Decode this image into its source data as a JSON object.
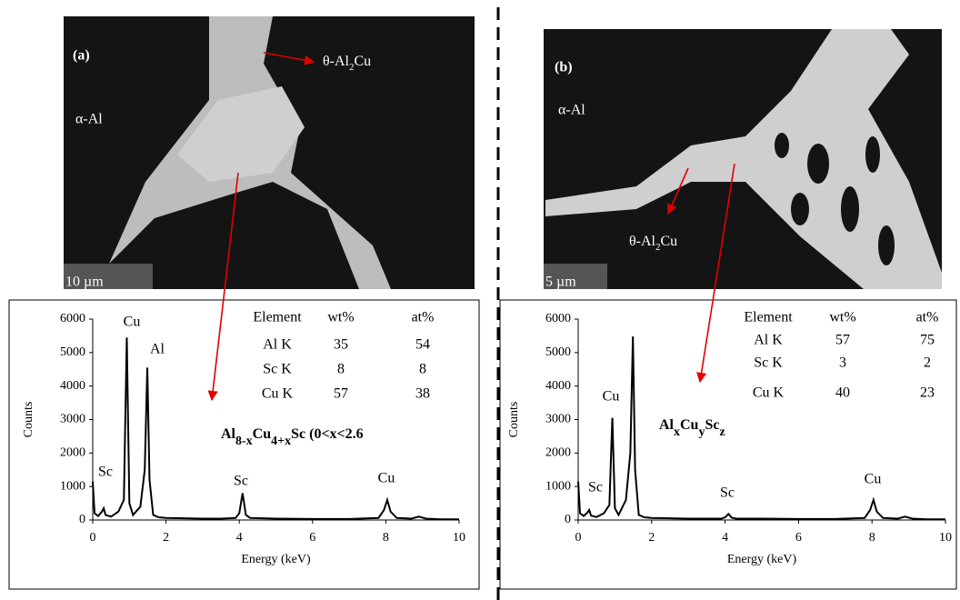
{
  "panels": [
    {
      "label": "(a)",
      "matrix": "α-Al",
      "phase": [
        "θ-Al",
        "2",
        "Cu"
      ],
      "scale": "10 µm"
    },
    {
      "label": "(b)",
      "matrix": "α-Al",
      "phase": [
        "θ-Al",
        "2",
        "Cu"
      ],
      "scale": "5 µm"
    }
  ],
  "chart_data": [
    {
      "type": "line",
      "x_label": "Energy (keV)",
      "y_label": "Counts",
      "color": "#000000",
      "x": [
        0,
        0.05,
        0.15,
        0.25,
        0.3,
        0.35,
        0.5,
        0.7,
        0.85,
        0.93,
        1.0,
        1.1,
        1.3,
        1.42,
        1.49,
        1.55,
        1.65,
        1.8,
        2.0,
        2.5,
        3,
        3.5,
        3.9,
        4.0,
        4.09,
        4.18,
        4.3,
        5,
        6,
        7,
        7.8,
        7.95,
        8.04,
        8.13,
        8.3,
        8.7,
        8.9,
        9.1,
        9.5,
        10
      ],
      "values": [
        1150,
        200,
        120,
        250,
        350,
        150,
        100,
        250,
        600,
        5450,
        500,
        150,
        400,
        1500,
        4550,
        1200,
        150,
        80,
        60,
        50,
        40,
        40,
        60,
        200,
        800,
        150,
        60,
        40,
        30,
        30,
        60,
        300,
        600,
        250,
        60,
        40,
        100,
        40,
        20,
        20
      ],
      "xlim": [
        0,
        10
      ],
      "xticks": [
        0,
        2,
        4,
        6,
        8,
        10
      ],
      "ylim": [
        0,
        6000
      ],
      "yticks": [
        0,
        1000,
        2000,
        3000,
        4000,
        5000,
        6000
      ],
      "annotations": [
        "Cu",
        "Al",
        "Sc",
        "Sc",
        "Cu"
      ],
      "table": {
        "header": [
          "Element",
          "wt%",
          "at%"
        ],
        "rows": [
          [
            "Al K",
            35,
            54
          ],
          [
            "Sc K",
            8,
            8
          ],
          [
            "Cu K",
            57,
            38
          ]
        ]
      },
      "formula": [
        "Al",
        "8-x",
        "Cu",
        "4+x",
        "Sc (0<x<2.6"
      ]
    },
    {
      "type": "line",
      "x_label": "Energy (keV)",
      "y_label": "Counts",
      "color": "#000000",
      "x": [
        0,
        0.05,
        0.15,
        0.25,
        0.3,
        0.35,
        0.5,
        0.7,
        0.85,
        0.93,
        1.0,
        1.1,
        1.3,
        1.42,
        1.49,
        1.55,
        1.65,
        1.8,
        2.0,
        2.5,
        3,
        3.5,
        3.9,
        4.0,
        4.09,
        4.18,
        4.3,
        5,
        6,
        7,
        7.8,
        7.95,
        8.04,
        8.13,
        8.3,
        8.7,
        8.9,
        9.1,
        9.5,
        10
      ],
      "values": [
        1150,
        200,
        120,
        220,
        300,
        130,
        90,
        200,
        450,
        3050,
        350,
        150,
        600,
        2000,
        5480,
        1500,
        150,
        80,
        60,
        50,
        40,
        40,
        40,
        80,
        180,
        70,
        40,
        40,
        30,
        30,
        60,
        300,
        600,
        250,
        60,
        40,
        100,
        40,
        20,
        20
      ],
      "xlim": [
        0,
        10
      ],
      "xticks": [
        0,
        2,
        4,
        6,
        8,
        10
      ],
      "ylim": [
        0,
        6000
      ],
      "yticks": [
        0,
        1000,
        2000,
        3000,
        4000,
        5000,
        6000
      ],
      "annotations": [
        "Cu",
        "Sc",
        "Sc",
        "Cu"
      ],
      "table": {
        "header": [
          "Element",
          "wt%",
          "at%"
        ],
        "rows": [
          [
            "Al K",
            57,
            75
          ],
          [
            "Sc K",
            3,
            2
          ],
          [
            "Cu K",
            40,
            23
          ]
        ]
      },
      "formula": [
        "Al",
        "x",
        "Cu",
        "y",
        "Sc",
        "z"
      ]
    }
  ]
}
